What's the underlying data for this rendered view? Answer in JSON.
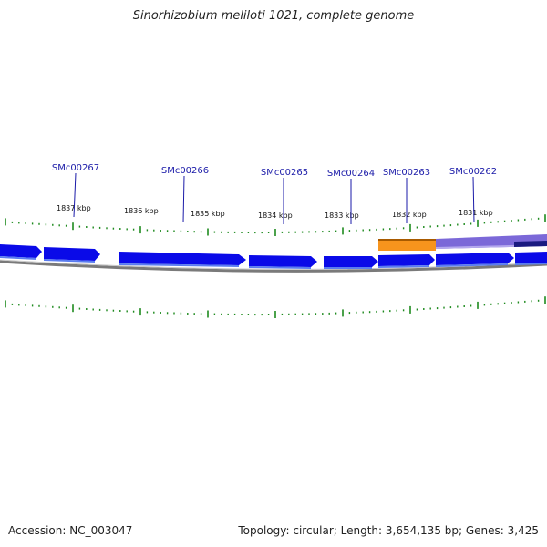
{
  "title": "Sinorhizobium meliloti 1021, complete genome",
  "footer": {
    "accession": "Accession: NC_003047",
    "summary": "Topology: circular; Length: 3,654,135 bp; Genes: 3,425"
  },
  "colors": {
    "gene_forward": "#0a0ae8",
    "gene_shadow": "#5a7cf0",
    "tick": "#1e8a1e",
    "orange_feature": "#f7941d",
    "purple_feature": "#7b68d8",
    "navy_feature": "#1a1a80",
    "backbone": "#7a7a7a",
    "gene_label": "#1a1aa8"
  },
  "gene_labels": [
    "SMc00267",
    "SMc00266",
    "SMc00265",
    "SMc00264",
    "SMc00263",
    "SMc00262"
  ],
  "kbp_labels": [
    "1837 kbp",
    "1836 kbp",
    "1835 kbp",
    "1834 kbp",
    "1833 kbp",
    "1832 kbp",
    "1831 kbp"
  ]
}
